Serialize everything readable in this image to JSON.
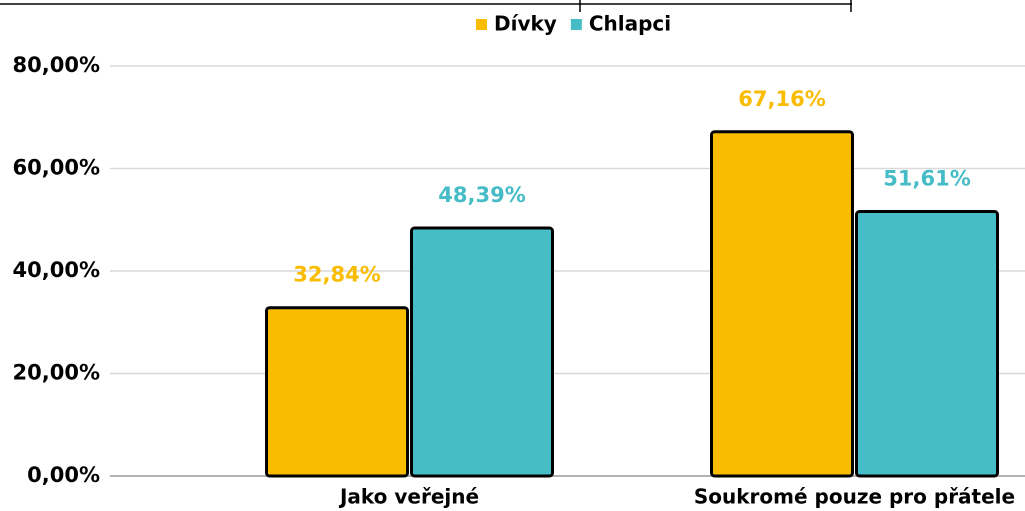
{
  "chart_data": {
    "type": "bar",
    "categories": [
      "Jako veřejné",
      "Soukromé pouze pro přátele"
    ],
    "series": [
      {
        "name": "Dívky",
        "color": "#f9bc00",
        "values": [
          32.84,
          67.16
        ],
        "value_labels": [
          "32,84%",
          "67,16%"
        ]
      },
      {
        "name": "Chlapci",
        "color": "#45bcc6",
        "values": [
          48.39,
          51.61
        ],
        "value_labels": [
          "48,39%",
          "51,61%"
        ]
      }
    ],
    "ylim": [
      0,
      80
    ],
    "yticks": [
      {
        "value": 0,
        "label": "0,00%"
      },
      {
        "value": 20,
        "label": "20,00%"
      },
      {
        "value": 40,
        "label": "40,00%"
      },
      {
        "value": 60,
        "label": "60,00%"
      },
      {
        "value": 80,
        "label": "80,00%"
      }
    ],
    "grid": true,
    "legend": "top"
  }
}
